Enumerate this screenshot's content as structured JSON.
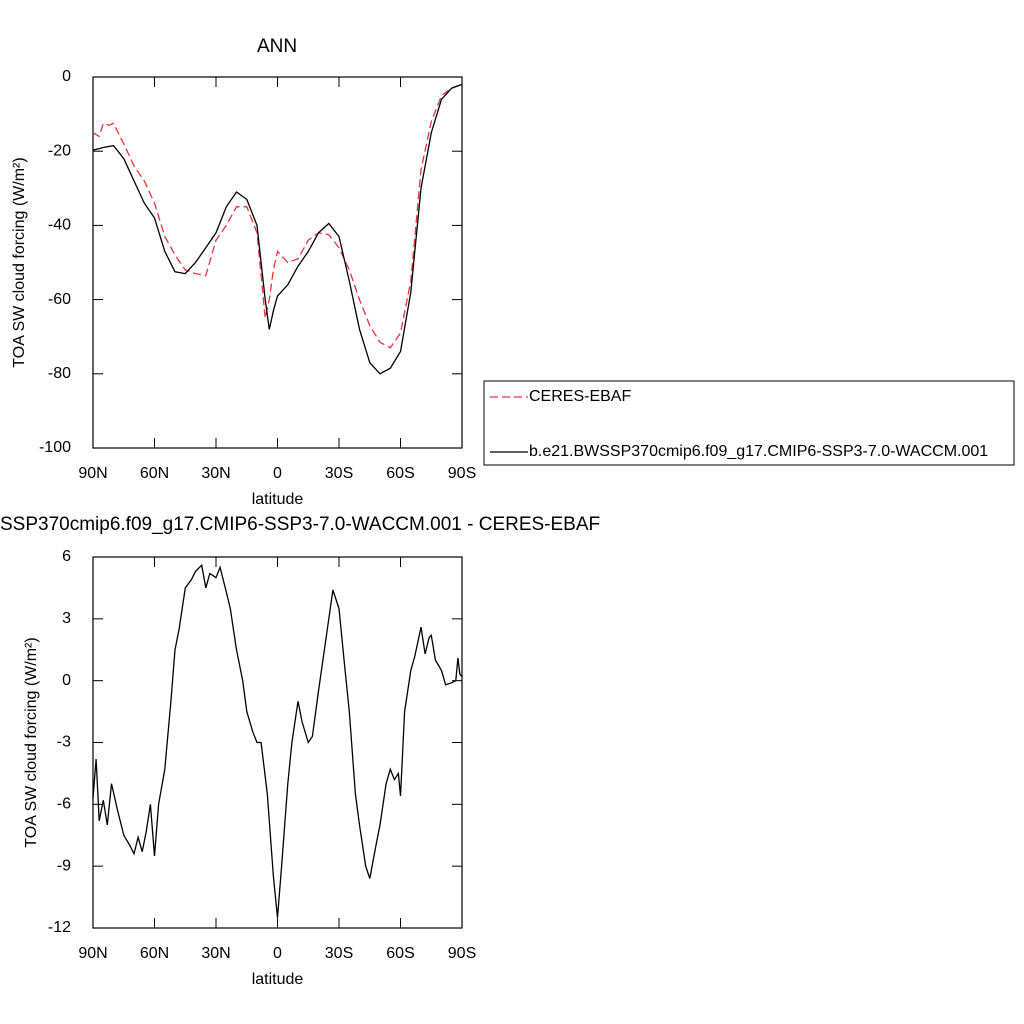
{
  "chart_data": [
    {
      "type": "line",
      "title": "ANN",
      "xlabel": "latitude",
      "ylabel": "TOA SW cloud forcing (W/m²)",
      "xlim": [
        90,
        -90
      ],
      "ylim": [
        -100,
        0
      ],
      "xticks": [
        {
          "value": 90,
          "label": "90N"
        },
        {
          "value": 60,
          "label": "60N"
        },
        {
          "value": 30,
          "label": "30N"
        },
        0,
        {
          "value": -30,
          "label": "30S"
        },
        {
          "value": -60,
          "label": "60S"
        },
        {
          "value": -90,
          "label": "90S"
        }
      ],
      "yticks": [
        0,
        -20,
        -40,
        -60,
        -80,
        -100
      ],
      "legend": "outside right",
      "x": [
        90,
        87,
        85,
        82,
        80,
        75,
        70,
        65,
        60,
        55,
        50,
        45,
        40,
        35,
        30,
        25,
        20,
        15,
        10,
        6,
        4,
        2,
        0,
        -5,
        -10,
        -15,
        -20,
        -25,
        -30,
        -35,
        -40,
        -45,
        -50,
        -55,
        -60,
        -65,
        -70,
        -75,
        -80,
        -85,
        -90
      ],
      "series": [
        {
          "name": "CERES-EBAF",
          "color": "#e8323c",
          "line_style": "dashed",
          "values": [
            -15,
            -16,
            -12.5,
            -13,
            -12.5,
            -18,
            -24,
            -28,
            -34,
            -43,
            -48,
            -52,
            -53,
            -53.5,
            -44,
            -40,
            -35,
            -35,
            -42,
            -65,
            -60,
            -52,
            -47,
            -50,
            -49,
            -44,
            -42,
            -42.5,
            -46,
            -52,
            -60,
            -67,
            -71.5,
            -73,
            -69,
            -55,
            -25,
            -12,
            -5,
            -3,
            -2
          ]
        },
        {
          "name": "b.e21.BWSSP370cmip6.f09_g17.CMIP6-SSP3-7.0-WACCM.001",
          "color": "#000000",
          "line_style": "solid",
          "values": [
            -19.7,
            -19.3,
            -19,
            -18.7,
            -18.5,
            -22,
            -28,
            -34,
            -38,
            -47,
            -52.5,
            -53,
            -50,
            -46,
            -42,
            -35,
            -31,
            -33,
            -40,
            -60,
            -68,
            -63,
            -59,
            -56,
            -51,
            -47,
            -42,
            -39.5,
            -43,
            -55,
            -68,
            -77,
            -80,
            -78.5,
            -74,
            -58,
            -30,
            -15,
            -6,
            -3,
            -2
          ]
        }
      ]
    },
    {
      "type": "line",
      "title": "SSP370cmip6.f09_g17.CMIP6-SSP3-7.0-WACCM.001 - CERES-EBAF",
      "xlabel": "latitude",
      "ylabel": "TOA SW cloud forcing (W/m²)",
      "xlim": [
        90,
        -90
      ],
      "ylim": [
        -12,
        6
      ],
      "xticks": [
        {
          "value": 90,
          "label": "90N"
        },
        {
          "value": 60,
          "label": "60N"
        },
        {
          "value": 30,
          "label": "30N"
        },
        0,
        {
          "value": -30,
          "label": "30S"
        },
        {
          "value": -60,
          "label": "60S"
        },
        {
          "value": -90,
          "label": "90S"
        }
      ],
      "yticks": [
        6,
        3,
        0,
        -3,
        -6,
        -9,
        -12
      ],
      "x": [
        90,
        88.5,
        87,
        85,
        83,
        81,
        78,
        75,
        72,
        70,
        68,
        66,
        64,
        62,
        60,
        58,
        55,
        52,
        50,
        48,
        45,
        42,
        40,
        37,
        35,
        33,
        30,
        28,
        25,
        23,
        20,
        17,
        15,
        12,
        10,
        8,
        5,
        2,
        0,
        -2,
        -5,
        -7,
        -10,
        -12,
        -15,
        -17,
        -20,
        -25,
        -27,
        -30,
        -33,
        -35,
        -38,
        -40,
        -43,
        -45,
        -48,
        -50,
        -53,
        -55,
        -57,
        -59,
        -60,
        -62,
        -65,
        -67,
        -70,
        -72,
        -74,
        -75,
        -77,
        -80,
        -82,
        -85,
        -87,
        -88,
        -89,
        -90
      ],
      "series": [
        {
          "color": "#000000",
          "line_style": "solid",
          "values": [
            -5.7,
            -3.8,
            -6.8,
            -5.8,
            -7.0,
            -5.0,
            -6.3,
            -7.5,
            -8.0,
            -8.4,
            -7.6,
            -8.3,
            -7.3,
            -6.0,
            -8.5,
            -6.0,
            -4.3,
            -1.0,
            1.5,
            2.5,
            4.5,
            4.9,
            5.3,
            5.6,
            4.5,
            5.2,
            5.0,
            5.5,
            4.3,
            3.5,
            1.5,
            0,
            -1.5,
            -2.5,
            -3.0,
            -3.0,
            -5.5,
            -9.5,
            -11.5,
            -9,
            -5,
            -3,
            -1.0,
            -2.0,
            -3.0,
            -2.7,
            -0.5,
            3.0,
            4.4,
            3.5,
            0.5,
            -1.5,
            -5.5,
            -7.0,
            -9.0,
            -9.6,
            -8.0,
            -7.0,
            -5.0,
            -4.3,
            -4.8,
            -4.5,
            -5.6,
            -1.5,
            0.5,
            1.2,
            2.6,
            1.3,
            2.1,
            2.2,
            1.0,
            0.5,
            -0.2,
            -0.1,
            0,
            1.1,
            0.3,
            0.2
          ]
        }
      ]
    }
  ]
}
